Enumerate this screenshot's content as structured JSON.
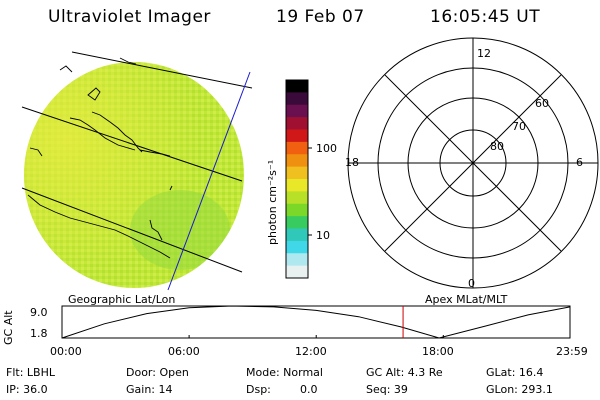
{
  "header": {
    "instrument": "Ultraviolet Imager",
    "date": "19 Feb 07",
    "time": "16:05:45 UT"
  },
  "map_panel": {
    "label": "Geographic Lat/Lon",
    "sea_color": "#c0e838",
    "outline_color": "#000000",
    "track_color": "#0000cc"
  },
  "colorbar": {
    "unit_label": "photon cm⁻²s⁻¹",
    "scale": "log",
    "tick_labels": [
      "100",
      "10"
    ],
    "colors": [
      "#000000",
      "#3a0a3a",
      "#6a1050",
      "#a01030",
      "#d01818",
      "#f06010",
      "#f09010",
      "#f0c020",
      "#e8e828",
      "#b8e028",
      "#7cd828",
      "#38cc60",
      "#30c8b8",
      "#40d8e8",
      "#b0e8f0",
      "#e8f0f0"
    ]
  },
  "polar_panel": {
    "label": "Apex MLat/MLT",
    "mlt_labels": {
      "top": "12",
      "left": "18",
      "right": "6",
      "bottom": "0"
    },
    "lat_labels": [
      "60",
      "70",
      "80"
    ]
  },
  "altitude_plot": {
    "ylabel": "GC Alt",
    "yticks": [
      "9.0",
      "1.8"
    ],
    "title_left": "Geographic Lat/Lon",
    "title_right": "Apex MLat/MLT",
    "xticks": [
      "00:00",
      "06:00",
      "12:00",
      "18:00",
      "23:59"
    ],
    "current_time_color": "#cc0000"
  },
  "chart_data": {
    "type": "line",
    "xlabel": "",
    "ylabel": "GC Alt",
    "x": [
      0,
      2,
      4,
      6,
      8,
      10,
      12,
      14,
      16,
      17.8,
      20,
      22,
      23.98
    ],
    "values": [
      1.8,
      5.0,
      7.3,
      8.6,
      9.0,
      8.8,
      8.0,
      6.6,
      4.3,
      1.8,
      4.5,
      7.0,
      8.8
    ],
    "ylim": [
      1.8,
      9.0
    ],
    "xlim": [
      0,
      23.98
    ],
    "marker_time": 16.1
  },
  "status": {
    "flt": "Flt: LBHL",
    "ip": "IP: 36.0",
    "door": "Door: Open",
    "gain": "Gain: 14",
    "mode": "Mode: Normal",
    "dsp": "Dsp:",
    "dsp_value": "0.0",
    "gcalt": "GC Alt: 4.3 Re",
    "seq": "Seq: 39",
    "glat": "GLat: 16.4",
    "glon": "GLon: 293.1"
  }
}
